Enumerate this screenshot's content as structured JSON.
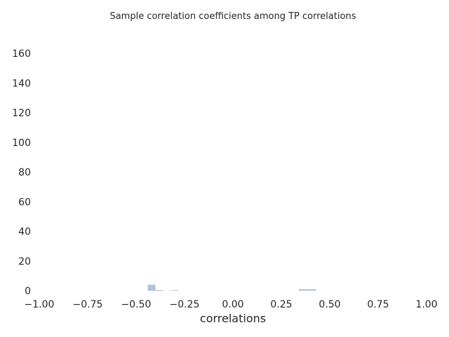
{
  "chart_data": {
    "type": "bar",
    "title": "Sample correlation coefficients among TP correlations",
    "xlabel": "correlations",
    "ylabel": "",
    "xlim": [
      -1.0,
      1.0
    ],
    "ylim": [
      0,
      170
    ],
    "xticks": [
      -1.0,
      -0.75,
      -0.5,
      -0.25,
      0.0,
      0.25,
      0.5,
      0.75,
      1.0
    ],
    "xtick_labels": [
      "−1.00",
      "−0.75",
      "−0.50",
      "−0.25",
      "0.00",
      "0.25",
      "0.50",
      "0.75",
      "1.00"
    ],
    "yticks": [
      0,
      20,
      40,
      60,
      80,
      100,
      120,
      140,
      160
    ],
    "ytick_labels": [
      "0",
      "20",
      "40",
      "60",
      "80",
      "100",
      "120",
      "140",
      "160"
    ],
    "bin_width": 0.04,
    "bins": [
      {
        "x0": -0.44,
        "x1": -0.4,
        "count": 4
      },
      {
        "x0": -0.4,
        "x1": -0.36,
        "count": 0.5
      },
      {
        "x0": -0.32,
        "x1": -0.28,
        "count": 0.4
      },
      {
        "x0": 0.34,
        "x1": 0.38,
        "count": 1
      },
      {
        "x0": 0.38,
        "x1": 0.43,
        "count": 1
      }
    ],
    "bar_color": "#b0c0df",
    "grid": false
  }
}
